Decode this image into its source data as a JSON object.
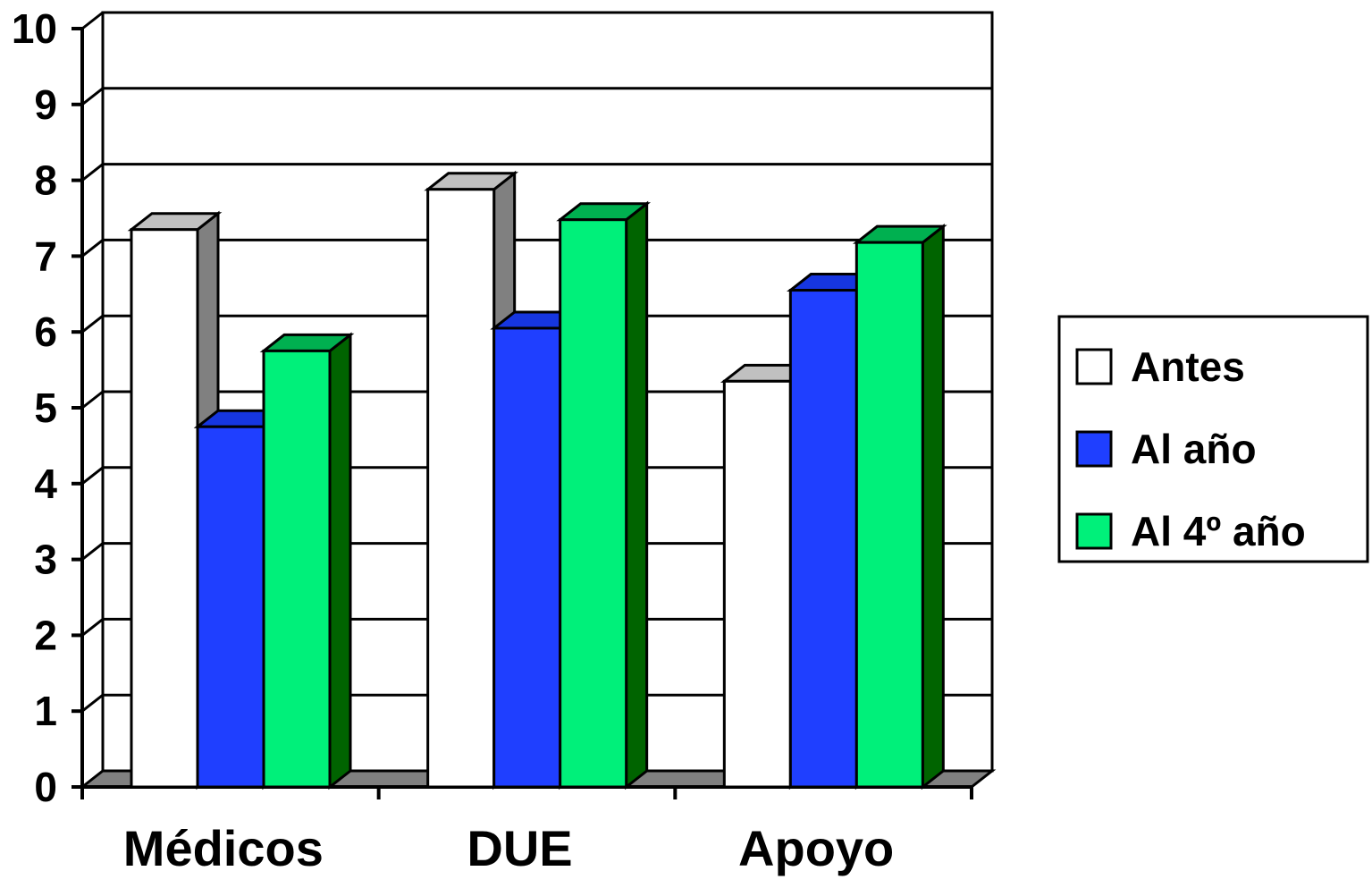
{
  "chart_data": {
    "type": "bar",
    "categories": [
      "Médicos",
      "DUE",
      "Apoyo"
    ],
    "series": [
      {
        "name": "Antes",
        "values": [
          7.35,
          7.88,
          5.35
        ],
        "color": "#ffffff",
        "side_color": "#808080",
        "top_color": "#c0c0c0"
      },
      {
        "name": "Al año",
        "values": [
          4.75,
          6.05,
          6.55
        ],
        "color": "#1f3fff",
        "side_color": "#0a1f99",
        "top_color": "#1636e0"
      },
      {
        "name": "Al 4º año",
        "values": [
          5.75,
          7.48,
          7.18
        ],
        "color": "#00f07a",
        "side_color": "#006400",
        "top_color": "#00b050"
      }
    ],
    "ylim": [
      0,
      10
    ],
    "yticks": [
      "0",
      "1",
      "2",
      "3",
      "4",
      "5",
      "6",
      "7",
      "8",
      "9",
      "10"
    ],
    "grid": true,
    "legend_position": "right",
    "title": "",
    "xlabel": "",
    "ylabel": ""
  }
}
